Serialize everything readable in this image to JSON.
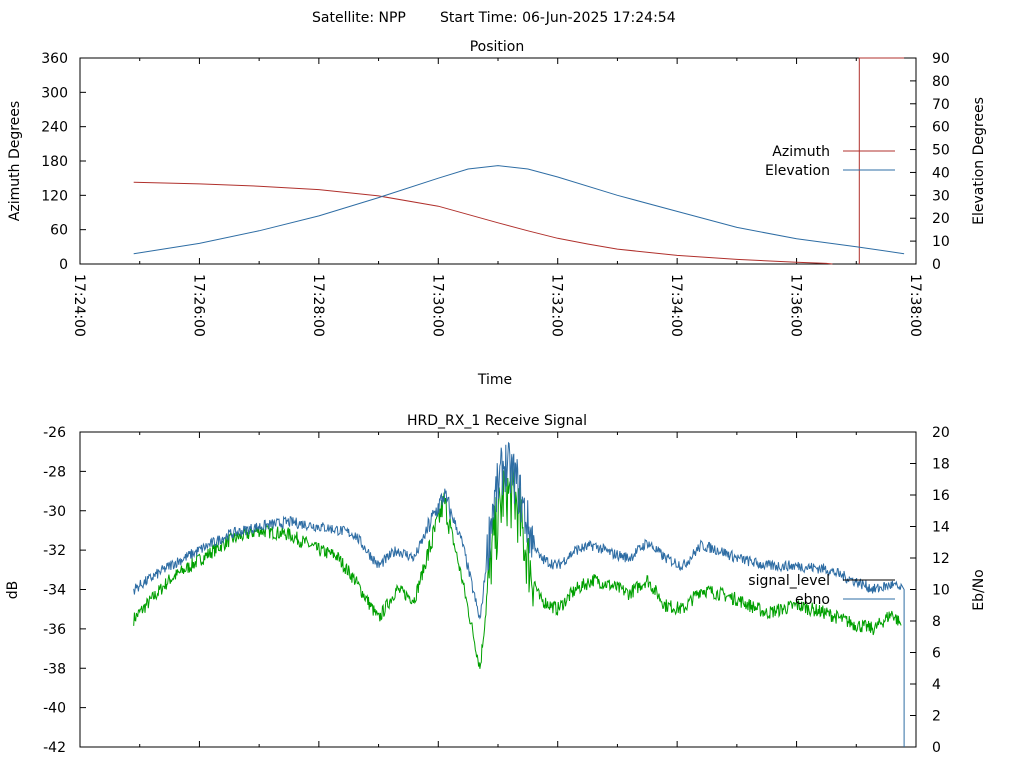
{
  "header": {
    "satellite": "Satellite: NPP",
    "start_time": "Start Time: 06-Jun-2025 17:24:54"
  },
  "chart_data": [
    {
      "type": "line",
      "title": "Position",
      "xlabel": "Time",
      "ylabel": "Azimuth Degrees",
      "y2label": "Elevation Degrees",
      "x_ticks": [
        "17:24:00",
        "17:26:00",
        "17:28:00",
        "17:30:00",
        "17:32:00",
        "17:34:00",
        "17:36:00",
        "17:38:00"
      ],
      "xlim_minutes": [
        0,
        14
      ],
      "ylim": [
        0,
        360
      ],
      "y_ticks": [
        "0",
        "60",
        "120",
        "180",
        "240",
        "300",
        "360"
      ],
      "y2lim": [
        0,
        90
      ],
      "y2_ticks": [
        "0",
        "10",
        "20",
        "30",
        "40",
        "50",
        "60",
        "70",
        "80",
        "90"
      ],
      "legend_position": "right",
      "colors": {
        "azimuth": "#b0302c",
        "elevation": "#2e6da4"
      },
      "series": [
        {
          "name": "Azimuth",
          "axis": "y",
          "x": [
            0.9,
            2.0,
            3.0,
            4.0,
            5.0,
            6.0,
            7.0,
            7.5,
            8.0,
            8.5,
            9.0,
            10.0,
            11.0,
            12.0,
            12.5,
            12.6
          ],
          "y": [
            143,
            140,
            136,
            130,
            119,
            101,
            72,
            58,
            45,
            35,
            26,
            15,
            8,
            3,
            1,
            0
          ],
          "wrap": {
            "x": [
              13.05,
              13.05,
              13.8
            ],
            "y": [
              0,
              360,
              360
            ]
          }
        },
        {
          "name": "Elevation",
          "axis": "y2",
          "x": [
            0.9,
            2.0,
            3.0,
            4.0,
            5.0,
            6.0,
            6.5,
            7.0,
            7.5,
            8.0,
            9.0,
            10.0,
            11.0,
            12.0,
            13.0,
            13.8
          ],
          "y": [
            4.5,
            9,
            14.5,
            21,
            29,
            37.5,
            41.5,
            43,
            41.5,
            38,
            30,
            23,
            16,
            11,
            7.5,
            4.5
          ]
        }
      ]
    },
    {
      "type": "line",
      "title": "HRD_RX_1 Receive Signal",
      "xlabel": "",
      "ylabel": "dB",
      "y2label": "Eb/No",
      "ylim": [
        -42,
        -26
      ],
      "y_ticks": [
        "-26",
        "-28",
        "-30",
        "-32",
        "-34",
        "-36",
        "-38",
        "-40",
        "-42"
      ],
      "y2lim": [
        0,
        20
      ],
      "y2_ticks": [
        "0",
        "2",
        "4",
        "6",
        "8",
        "10",
        "12",
        "14",
        "16",
        "18",
        "20"
      ],
      "legend_position": "right",
      "colors": {
        "signal_level": "#000000",
        "ebno": "#2e6da4",
        "green_trace": "#00a000"
      },
      "series": [
        {
          "name": "ebno",
          "axis": "y2",
          "x": [
            0.9,
            1.5,
            2.0,
            2.5,
            3.0,
            3.5,
            4.0,
            4.3,
            4.6,
            5.0,
            5.3,
            5.6,
            5.9,
            6.1,
            6.4,
            6.7,
            6.9,
            7.1,
            7.3,
            7.5,
            7.7,
            8.0,
            8.3,
            8.6,
            8.9,
            9.2,
            9.5,
            9.8,
            10.1,
            10.4,
            10.7,
            11.0,
            11.5,
            12.0,
            12.5,
            13.0,
            13.3,
            13.6,
            13.75,
            13.8
          ],
          "y": [
            10,
            11.5,
            12.5,
            13.5,
            14,
            14.3,
            14,
            13.8,
            13.5,
            11.5,
            12.5,
            12,
            14.5,
            16,
            13,
            8,
            15,
            18,
            17,
            14,
            12,
            11.5,
            12.5,
            12.8,
            12.3,
            12,
            13,
            12,
            11.5,
            12.8,
            12.5,
            12,
            11.5,
            11.5,
            11.3,
            10.5,
            10,
            10.3,
            10,
            0
          ]
        },
        {
          "name": "signal_level",
          "axis": "y",
          "x": [],
          "y": []
        },
        {
          "name": "",
          "axis": "y",
          "x": [
            0.9,
            1.5,
            2.0,
            2.5,
            3.0,
            3.5,
            4.0,
            4.3,
            4.6,
            5.0,
            5.3,
            5.6,
            5.9,
            6.1,
            6.4,
            6.7,
            6.9,
            7.1,
            7.3,
            7.5,
            7.7,
            8.0,
            8.3,
            8.6,
            8.9,
            9.2,
            9.5,
            9.8,
            10.1,
            10.4,
            10.7,
            11.0,
            11.5,
            12.0,
            12.5,
            13.0,
            13.3,
            13.6,
            13.75
          ],
          "y": [
            -35.5,
            -33.5,
            -32.5,
            -31.5,
            -31,
            -31.2,
            -32,
            -32.3,
            -33.5,
            -35.5,
            -34,
            -34.5,
            -31.5,
            -29.5,
            -33.5,
            -38,
            -32,
            -29,
            -29.5,
            -32.5,
            -34.5,
            -35,
            -34,
            -33.5,
            -33.8,
            -34.2,
            -33.5,
            -34.8,
            -35,
            -34,
            -34.2,
            -34.5,
            -35.2,
            -34.8,
            -35.2,
            -35.8,
            -36,
            -35.2,
            -35.8
          ]
        }
      ]
    }
  ]
}
